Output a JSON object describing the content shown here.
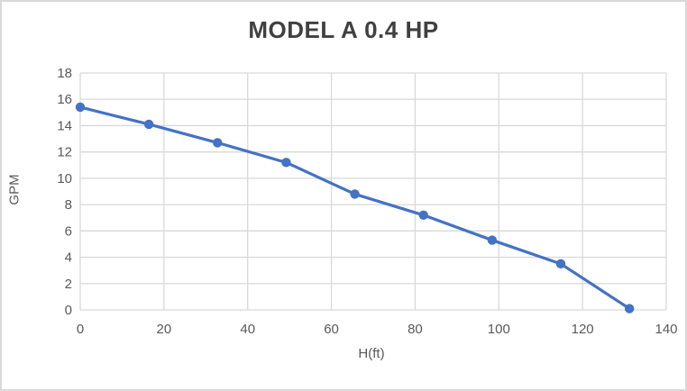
{
  "chart_data": {
    "type": "line",
    "title": "MODEL A 0.4 HP",
    "xlabel": "H(ft)",
    "ylabel": "GPM",
    "x": [
      0,
      16.4,
      32.8,
      49.2,
      65.6,
      82.0,
      98.4,
      114.8,
      131.2
    ],
    "y": [
      15.4,
      14.1,
      12.7,
      11.2,
      8.8,
      7.2,
      5.3,
      3.5,
      0.1
    ],
    "xlim": [
      0,
      140
    ],
    "ylim": [
      0,
      18
    ],
    "x_ticks": [
      0,
      20,
      40,
      60,
      80,
      100,
      120,
      140
    ],
    "y_ticks": [
      0,
      2,
      4,
      6,
      8,
      10,
      12,
      14,
      16,
      18
    ],
    "grid": true,
    "legend": false,
    "marker": "circle"
  },
  "colors": {
    "series": "#4472c4",
    "gridline": "#d9d9d9",
    "chart_border": "#d9d9d9",
    "tick_text": "#595959",
    "axis_title_text": "#595959",
    "title_text": "#404040",
    "background": "#ffffff"
  }
}
